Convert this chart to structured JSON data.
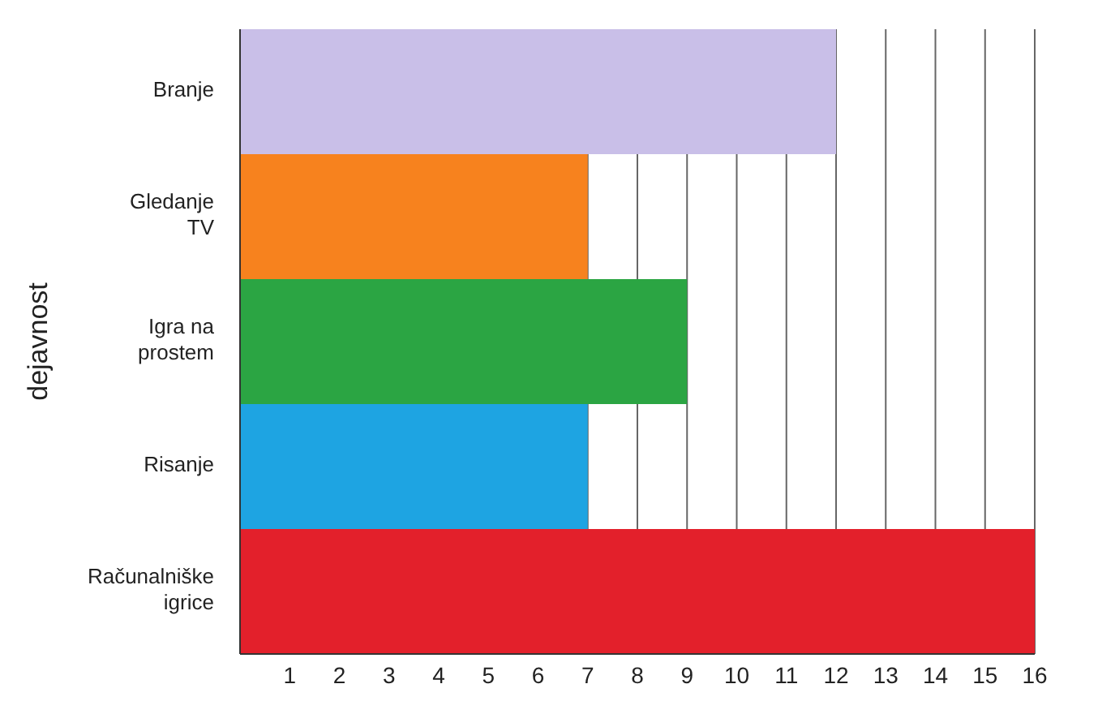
{
  "chart_data": {
    "type": "bar",
    "orientation": "horizontal",
    "ylabel": "dejavnost",
    "categories": [
      "Branje",
      "Gledanje TV",
      "Igra na prostem",
      "Risanje",
      "Računalniške igrice"
    ],
    "values": [
      12,
      7,
      9,
      7,
      16
    ],
    "colors": [
      "#c9bfe8",
      "#f7821e",
      "#2ba543",
      "#1ea4e2",
      "#e3202b"
    ],
    "xlim": [
      0,
      16
    ],
    "xticks": [
      1,
      2,
      3,
      4,
      5,
      6,
      7,
      8,
      9,
      10,
      11,
      12,
      13,
      14,
      15,
      16
    ],
    "grid": "x"
  }
}
